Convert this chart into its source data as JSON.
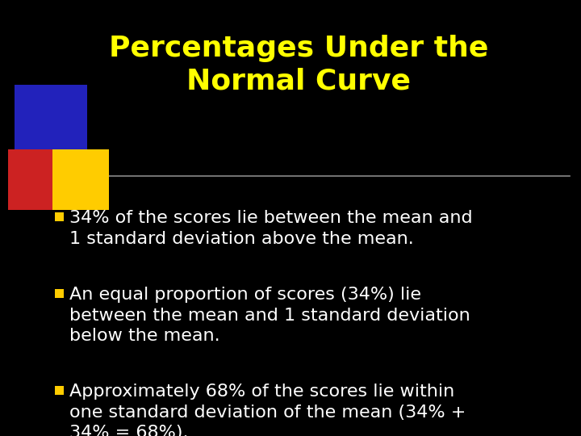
{
  "title_line1": "Percentages Under the",
  "title_line2": "Normal Curve",
  "title_color": "#FFFF00",
  "background_color": "#000000",
  "bullet_color": "#FFCC00",
  "text_color": "#FFFFFF",
  "bullet1": "34% of the scores lie between the mean and\n1 standard deviation above the mean.",
  "bullet2": "An equal proportion of scores (34%) lie\nbetween the mean and 1 standard deviation\nbelow the mean.",
  "bullet3": "Approximately 68% of the scores lie within\none standard deviation of the mean (34% +\n34% = 68%).",
  "separator_color": "#888888",
  "logo_blue": "#2222BB",
  "logo_red": "#CC2222",
  "logo_yellow": "#FFCC00",
  "title_fontsize": 26,
  "body_fontsize": 16
}
